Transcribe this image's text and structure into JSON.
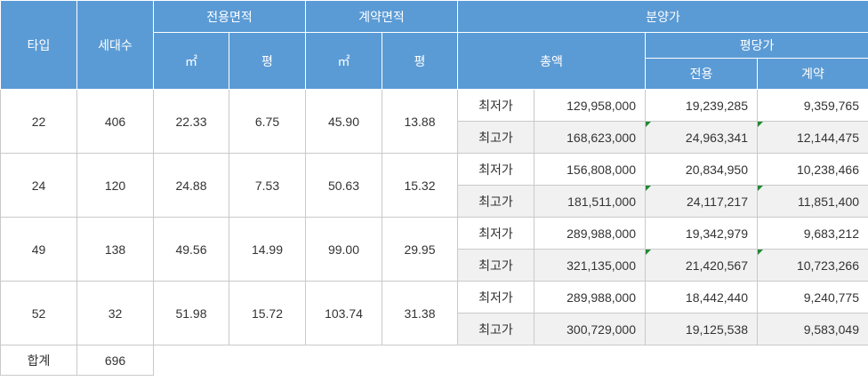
{
  "header": {
    "type": "타입",
    "households": "세대수",
    "exclusive_area": "전용면적",
    "contract_area": "계약면적",
    "sale_price": "분양가",
    "sqm": "㎡",
    "pyeong": "평",
    "total": "총액",
    "per_pyeong": "평당가",
    "exclusive": "전용",
    "contract": "계약"
  },
  "rows": [
    {
      "type": "22",
      "households": "406",
      "ex_sqm": "22.33",
      "ex_py": "6.75",
      "ct_sqm": "45.90",
      "ct_py": "13.88",
      "low": {
        "label": "최저가",
        "total": "129,958,000",
        "per_ex": "19,239,285",
        "per_ct": "9,359,765"
      },
      "high": {
        "label": "최고가",
        "total": "168,623,000",
        "per_ex": "24,963,341",
        "per_ct": "12,144,475"
      }
    },
    {
      "type": "24",
      "households": "120",
      "ex_sqm": "24.88",
      "ex_py": "7.53",
      "ct_sqm": "50.63",
      "ct_py": "15.32",
      "low": {
        "label": "최저가",
        "total": "156,808,000",
        "per_ex": "20,834,950",
        "per_ct": "10,238,466"
      },
      "high": {
        "label": "최고가",
        "total": "181,511,000",
        "per_ex": "24,117,217",
        "per_ct": "11,851,400"
      }
    },
    {
      "type": "49",
      "households": "138",
      "ex_sqm": "49.56",
      "ex_py": "14.99",
      "ct_sqm": "99.00",
      "ct_py": "29.95",
      "low": {
        "label": "최저가",
        "total": "289,988,000",
        "per_ex": "19,342,979",
        "per_ct": "9,683,212"
      },
      "high": {
        "label": "최고가",
        "total": "321,135,000",
        "per_ex": "21,420,567",
        "per_ct": "10,723,266"
      }
    },
    {
      "type": "52",
      "households": "32",
      "ex_sqm": "51.98",
      "ex_py": "15.72",
      "ct_sqm": "103.74",
      "ct_py": "31.38",
      "low": {
        "label": "최저가",
        "total": "289,988,000",
        "per_ex": "18,442,440",
        "per_ct": "9,240,775"
      },
      "high": {
        "label": "최고가",
        "total": "300,729,000",
        "per_ex": "19,125,538",
        "per_ct": "9,583,049"
      }
    }
  ],
  "footer": {
    "label": "합계",
    "households": "696"
  }
}
